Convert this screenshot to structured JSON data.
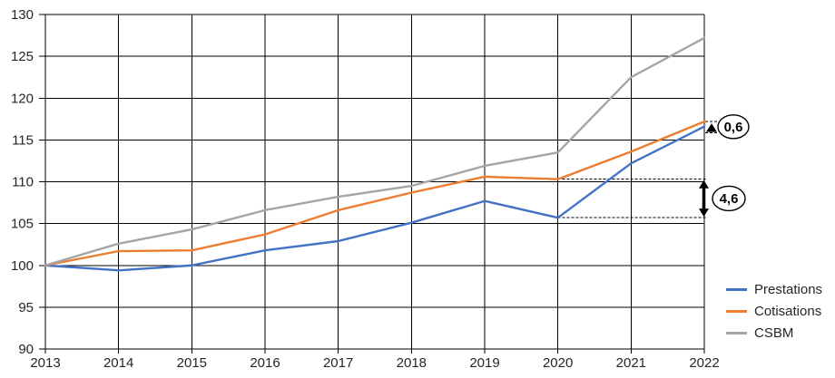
{
  "page": {
    "background": "#ffffff",
    "text_color": "#262626"
  },
  "chart_data": {
    "type": "line",
    "title": "",
    "xlabel": "",
    "ylabel": "",
    "x": [
      2013,
      2014,
      2015,
      2016,
      2017,
      2018,
      2019,
      2020,
      2021,
      2022
    ],
    "series": [
      {
        "name": "Prestations",
        "color": "#4472C4",
        "values": [
          100,
          99.4,
          100.0,
          101.8,
          102.9,
          105.1,
          107.7,
          105.7,
          112.2,
          116.6
        ]
      },
      {
        "name": "Cotisations",
        "color": "#ED7D31",
        "values": [
          100,
          101.7,
          101.8,
          103.7,
          106.6,
          108.7,
          110.6,
          110.3,
          113.6,
          117.2
        ]
      },
      {
        "name": "CSBM",
        "color": "#A5A5A5",
        "values": [
          100,
          102.6,
          104.3,
          106.6,
          108.2,
          109.5,
          111.9,
          113.5,
          122.5,
          127.2
        ]
      }
    ],
    "ylim": [
      90,
      130
    ],
    "ytick_step": 5,
    "yticks": [
      90,
      95,
      100,
      105,
      110,
      115,
      120,
      125,
      130
    ],
    "xticks": [
      "2013",
      "2014",
      "2015",
      "2016",
      "2017",
      "2018",
      "2019",
      "2020",
      "2021",
      "2022"
    ],
    "grid": "both",
    "gridline_color": "#000000",
    "legend_position": "right",
    "annotations": [
      {
        "label": "0,6",
        "year": 2022,
        "between": [
          "Prestations",
          "Cotisations"
        ],
        "gap": 0.6
      },
      {
        "label": "4,6",
        "year": 2020,
        "between": [
          "Prestations",
          "Cotisations"
        ],
        "gap": 4.6
      }
    ]
  }
}
